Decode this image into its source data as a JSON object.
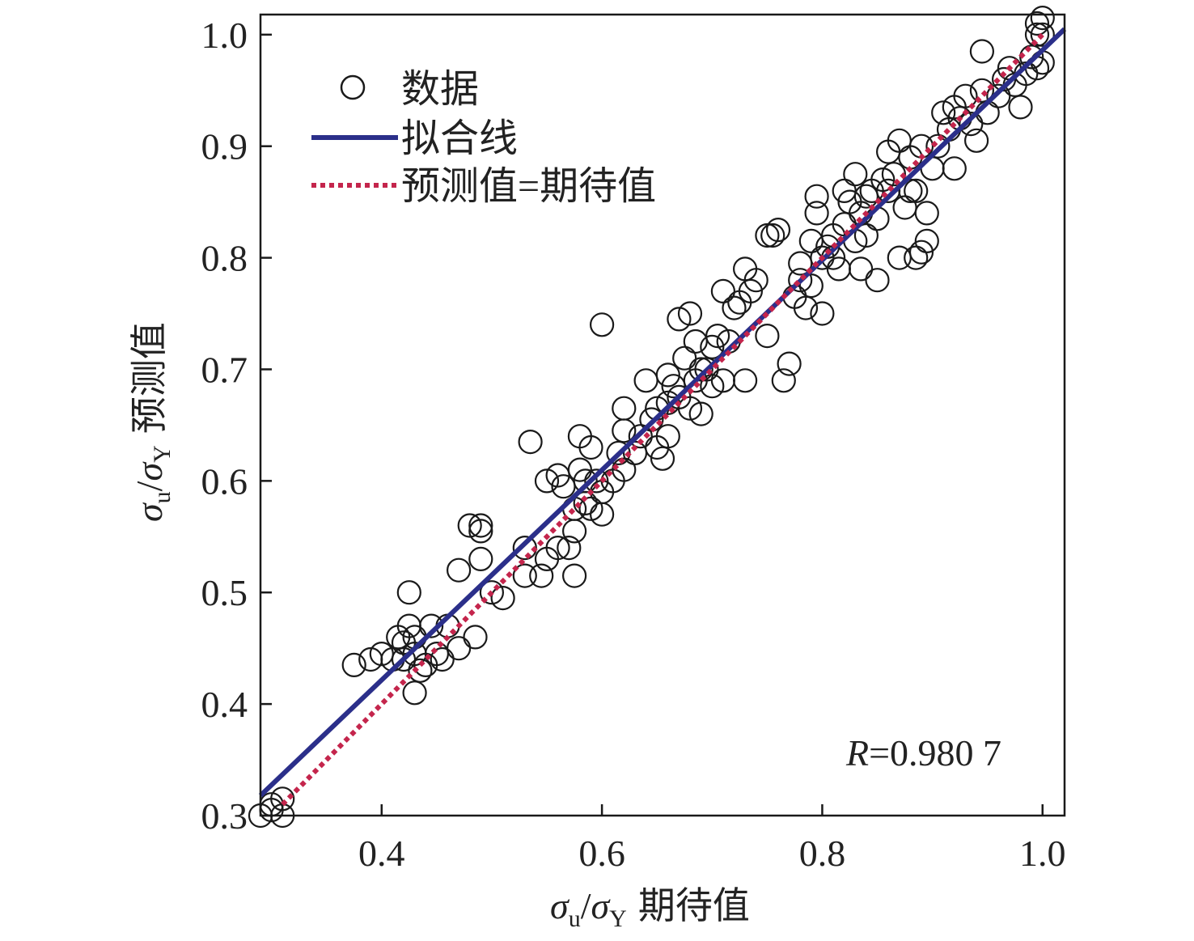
{
  "chart_data": {
    "type": "scatter",
    "xlabel": {
      "sym1": "σ",
      "sub1": "u",
      "slash": "/",
      "sym2": "σ",
      "sub2": "Y",
      "text": "期待值"
    },
    "ylabel": {
      "sym1": "σ",
      "sub1": "u",
      "slash": "/",
      "sym2": "σ",
      "sub2": "Y",
      "text": "预测值"
    },
    "xlim": [
      0.29,
      1.02
    ],
    "ylim": [
      0.3,
      1.018
    ],
    "xticks": [
      0.4,
      0.6,
      0.8,
      1.0
    ],
    "xtick_labels": [
      "0.4",
      "0.6",
      "0.8",
      "1.0"
    ],
    "yticks": [
      0.3,
      0.4,
      0.5,
      0.6,
      0.7,
      0.8,
      0.9,
      1.0
    ],
    "ytick_labels": [
      "0.3",
      "0.4",
      "0.5",
      "0.6",
      "0.7",
      "0.8",
      "0.9",
      "1.0"
    ],
    "legend": {
      "position": "top-left",
      "entries": [
        {
          "label": "数据",
          "marker": "circle"
        },
        {
          "label": "拟合线",
          "line": "solid",
          "color": "#2b2f8a"
        },
        {
          "label": "预测值=期待值",
          "line": "dotted",
          "color": "#c4254c"
        }
      ]
    },
    "annotation": {
      "var": "R",
      "value": "=0.980 7",
      "position": "bottom-right"
    },
    "colors": {
      "data": "#1a1a1a",
      "fit": "#2b2f8a",
      "identity": "#c4254c"
    },
    "series": [
      {
        "name": "数据",
        "marker": "circle",
        "points": [
          [
            0.29,
            0.3
          ],
          [
            0.3,
            0.31
          ],
          [
            0.31,
            0.3
          ],
          [
            0.31,
            0.315
          ],
          [
            0.3,
            0.305
          ],
          [
            0.375,
            0.435
          ],
          [
            0.39,
            0.44
          ],
          [
            0.4,
            0.445
          ],
          [
            0.41,
            0.44
          ],
          [
            0.415,
            0.46
          ],
          [
            0.42,
            0.455
          ],
          [
            0.42,
            0.44
          ],
          [
            0.425,
            0.5
          ],
          [
            0.425,
            0.47
          ],
          [
            0.43,
            0.46
          ],
          [
            0.43,
            0.41
          ],
          [
            0.43,
            0.445
          ],
          [
            0.435,
            0.43
          ],
          [
            0.44,
            0.435
          ],
          [
            0.445,
            0.47
          ],
          [
            0.45,
            0.445
          ],
          [
            0.455,
            0.44
          ],
          [
            0.46,
            0.47
          ],
          [
            0.47,
            0.45
          ],
          [
            0.47,
            0.52
          ],
          [
            0.48,
            0.56
          ],
          [
            0.485,
            0.46
          ],
          [
            0.49,
            0.53
          ],
          [
            0.49,
            0.555
          ],
          [
            0.49,
            0.56
          ],
          [
            0.5,
            0.5
          ],
          [
            0.51,
            0.495
          ],
          [
            0.53,
            0.515
          ],
          [
            0.53,
            0.54
          ],
          [
            0.535,
            0.635
          ],
          [
            0.545,
            0.515
          ],
          [
            0.55,
            0.53
          ],
          [
            0.55,
            0.6
          ],
          [
            0.56,
            0.54
          ],
          [
            0.56,
            0.605
          ],
          [
            0.565,
            0.595
          ],
          [
            0.57,
            0.54
          ],
          [
            0.575,
            0.515
          ],
          [
            0.575,
            0.555
          ],
          [
            0.575,
            0.575
          ],
          [
            0.58,
            0.61
          ],
          [
            0.58,
            0.64
          ],
          [
            0.585,
            0.58
          ],
          [
            0.585,
            0.6
          ],
          [
            0.59,
            0.575
          ],
          [
            0.59,
            0.63
          ],
          [
            0.595,
            0.6
          ],
          [
            0.6,
            0.74
          ],
          [
            0.6,
            0.57
          ],
          [
            0.6,
            0.59
          ],
          [
            0.61,
            0.6
          ],
          [
            0.615,
            0.625
          ],
          [
            0.62,
            0.645
          ],
          [
            0.62,
            0.61
          ],
          [
            0.62,
            0.665
          ],
          [
            0.63,
            0.625
          ],
          [
            0.635,
            0.64
          ],
          [
            0.64,
            0.69
          ],
          [
            0.645,
            0.655
          ],
          [
            0.65,
            0.665
          ],
          [
            0.65,
            0.63
          ],
          [
            0.655,
            0.62
          ],
          [
            0.66,
            0.695
          ],
          [
            0.66,
            0.64
          ],
          [
            0.66,
            0.67
          ],
          [
            0.665,
            0.685
          ],
          [
            0.67,
            0.675
          ],
          [
            0.67,
            0.745
          ],
          [
            0.675,
            0.71
          ],
          [
            0.68,
            0.665
          ],
          [
            0.68,
            0.75
          ],
          [
            0.685,
            0.725
          ],
          [
            0.685,
            0.69
          ],
          [
            0.69,
            0.7
          ],
          [
            0.69,
            0.66
          ],
          [
            0.695,
            0.7
          ],
          [
            0.7,
            0.72
          ],
          [
            0.7,
            0.685
          ],
          [
            0.705,
            0.73
          ],
          [
            0.71,
            0.69
          ],
          [
            0.71,
            0.77
          ],
          [
            0.715,
            0.725
          ],
          [
            0.72,
            0.755
          ],
          [
            0.725,
            0.76
          ],
          [
            0.73,
            0.69
          ],
          [
            0.73,
            0.79
          ],
          [
            0.735,
            0.77
          ],
          [
            0.74,
            0.78
          ],
          [
            0.75,
            0.73
          ],
          [
            0.75,
            0.82
          ],
          [
            0.755,
            0.82
          ],
          [
            0.76,
            0.825
          ],
          [
            0.765,
            0.69
          ],
          [
            0.77,
            0.705
          ],
          [
            0.775,
            0.765
          ],
          [
            0.78,
            0.78
          ],
          [
            0.78,
            0.795
          ],
          [
            0.785,
            0.755
          ],
          [
            0.79,
            0.775
          ],
          [
            0.79,
            0.815
          ],
          [
            0.795,
            0.84
          ],
          [
            0.795,
            0.855
          ],
          [
            0.8,
            0.8
          ],
          [
            0.8,
            0.75
          ],
          [
            0.805,
            0.81
          ],
          [
            0.81,
            0.8
          ],
          [
            0.81,
            0.82
          ],
          [
            0.815,
            0.79
          ],
          [
            0.82,
            0.83
          ],
          [
            0.82,
            0.86
          ],
          [
            0.825,
            0.85
          ],
          [
            0.83,
            0.815
          ],
          [
            0.83,
            0.875
          ],
          [
            0.835,
            0.79
          ],
          [
            0.835,
            0.84
          ],
          [
            0.84,
            0.82
          ],
          [
            0.84,
            0.855
          ],
          [
            0.845,
            0.86
          ],
          [
            0.85,
            0.835
          ],
          [
            0.85,
            0.78
          ],
          [
            0.855,
            0.87
          ],
          [
            0.86,
            0.895
          ],
          [
            0.86,
            0.86
          ],
          [
            0.865,
            0.875
          ],
          [
            0.87,
            0.8
          ],
          [
            0.87,
            0.905
          ],
          [
            0.875,
            0.845
          ],
          [
            0.88,
            0.89
          ],
          [
            0.88,
            0.86
          ],
          [
            0.885,
            0.86
          ],
          [
            0.885,
            0.8
          ],
          [
            0.89,
            0.805
          ],
          [
            0.89,
            0.9
          ],
          [
            0.895,
            0.84
          ],
          [
            0.895,
            0.815
          ],
          [
            0.9,
            0.88
          ],
          [
            0.905,
            0.9
          ],
          [
            0.91,
            0.93
          ],
          [
            0.915,
            0.915
          ],
          [
            0.92,
            0.88
          ],
          [
            0.92,
            0.935
          ],
          [
            0.925,
            0.925
          ],
          [
            0.93,
            0.945
          ],
          [
            0.935,
            0.92
          ],
          [
            0.94,
            0.905
          ],
          [
            0.945,
            0.95
          ],
          [
            0.945,
            0.985
          ],
          [
            0.95,
            0.93
          ],
          [
            0.96,
            0.945
          ],
          [
            0.965,
            0.96
          ],
          [
            0.97,
            0.97
          ],
          [
            0.975,
            0.955
          ],
          [
            0.98,
            0.935
          ],
          [
            0.985,
            0.965
          ],
          [
            0.99,
            0.98
          ],
          [
            0.995,
            1.0
          ],
          [
            0.995,
            1.01
          ],
          [
            1.0,
            1.0
          ],
          [
            1.0,
            1.015
          ],
          [
            0.995,
            0.97
          ],
          [
            1.0,
            0.975
          ]
        ]
      },
      {
        "name": "拟合线",
        "type": "line",
        "style": "solid",
        "x": [
          0.29,
          1.02
        ],
        "y": [
          0.318,
          1.005
        ]
      },
      {
        "name": "预测值=期待值",
        "type": "line",
        "style": "dotted",
        "x": [
          0.31,
          1.0
        ],
        "y": [
          0.31,
          1.0
        ]
      }
    ]
  }
}
